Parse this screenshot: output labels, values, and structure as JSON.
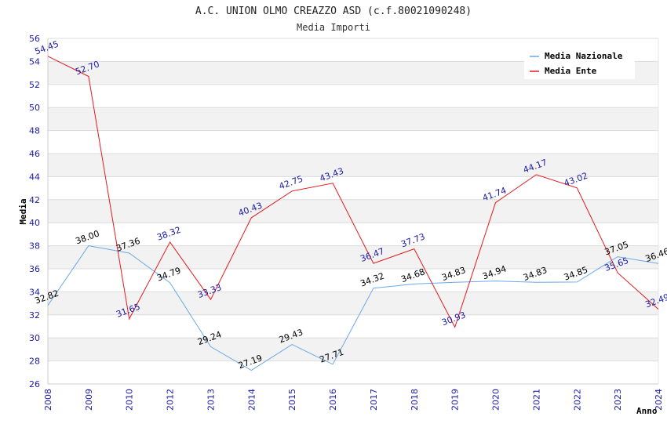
{
  "chart_data": {
    "type": "line",
    "title": "A.C. UNION OLMO CREAZZO ASD (c.f.80021090248)",
    "subtitle": "Media Importi",
    "xlabel": "Anno",
    "ylabel": "Media",
    "ylim": [
      26,
      56
    ],
    "ystep": 2,
    "grid": true,
    "legend_position": "top-right",
    "categories": [
      "2008",
      "2009",
      "2010",
      "2012",
      "2013",
      "2014",
      "2015",
      "2016",
      "2017",
      "2018",
      "2019",
      "2020",
      "2021",
      "2022",
      "2023",
      "2024"
    ],
    "series": [
      {
        "name": "Media Nazionale",
        "color": "#6aa9e6",
        "label_color": "#000000",
        "values": [
          32.82,
          38.0,
          37.36,
          34.79,
          29.24,
          27.19,
          29.43,
          27.71,
          34.32,
          34.68,
          34.83,
          34.94,
          34.83,
          34.85,
          37.05,
          36.46
        ],
        "labels": [
          "32.82",
          "38.00",
          "37.36",
          "34.79",
          "29.24",
          "27.19",
          "29.43",
          "27.71",
          "34.32",
          "34.68",
          "34.83",
          "34.94",
          "34.83",
          "34.85",
          "37.05",
          "36.46"
        ]
      },
      {
        "name": "Media Ente",
        "color": "#e31a1c",
        "label_color": "#1a1aa6",
        "values": [
          54.45,
          52.7,
          31.65,
          38.32,
          33.33,
          40.43,
          42.75,
          43.43,
          36.47,
          37.73,
          30.93,
          41.74,
          44.17,
          43.02,
          35.65,
          32.49
        ],
        "labels": [
          "54.45",
          "52.70",
          "31.65",
          "38.32",
          "33.33",
          "40.43",
          "42.75",
          "43.43",
          "36.47",
          "37.73",
          "30.93",
          "41.74",
          "44.17",
          "43.02",
          "35.65",
          "32.49"
        ]
      }
    ]
  }
}
